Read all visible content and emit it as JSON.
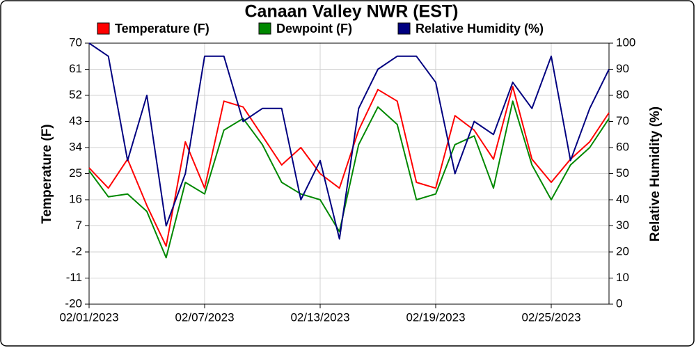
{
  "chart_data": {
    "type": "line",
    "title": "Canaan Valley NWR (EST)",
    "y_label": "Temperature (F)",
    "y2_label": "Relative Humidity (%)",
    "x": [
      "02/01/2023",
      "02/02/2023",
      "02/03/2023",
      "02/04/2023",
      "02/05/2023",
      "02/06/2023",
      "02/07/2023",
      "02/08/2023",
      "02/09/2023",
      "02/10/2023",
      "02/11/2023",
      "02/12/2023",
      "02/13/2023",
      "02/14/2023",
      "02/15/2023",
      "02/16/2023",
      "02/17/2023",
      "02/18/2023",
      "02/19/2023",
      "02/20/2023",
      "02/21/2023",
      "02/22/2023",
      "02/23/2023",
      "02/24/2023",
      "02/25/2023",
      "02/26/2023",
      "02/27/2023",
      "02/28/2023"
    ],
    "xlim": [
      "02/01/2023",
      "02/28/2023"
    ],
    "xticks": [
      "02/01/2023",
      "02/07/2023",
      "02/13/2023",
      "02/19/2023",
      "02/25/2023"
    ],
    "ylim": [
      -20,
      70
    ],
    "yticks": [
      -20,
      -11,
      -2,
      7,
      16,
      25,
      34,
      43,
      52,
      61,
      70
    ],
    "y2lim": [
      0,
      100
    ],
    "y2ticks": [
      0,
      10,
      20,
      30,
      40,
      50,
      60,
      70,
      80,
      90,
      100
    ],
    "grid": true,
    "legend": "top",
    "series": [
      {
        "name": "Temperature (F)",
        "color": "#ff0000",
        "values": [
          27,
          20,
          30,
          14,
          0,
          36,
          20,
          50,
          48,
          38,
          28,
          34,
          25,
          20,
          40,
          54,
          50,
          22,
          20,
          45,
          40,
          30,
          55,
          30,
          22,
          30,
          36,
          46
        ]
      },
      {
        "name": "Dewpoint (F)",
        "color": "#008800",
        "values": [
          26,
          17,
          18,
          12,
          -4,
          22,
          18,
          40,
          44,
          35,
          22,
          18,
          16,
          5,
          35,
          48,
          42,
          16,
          18,
          35,
          38,
          20,
          50,
          28,
          16,
          28,
          34,
          44
        ]
      },
      {
        "name": "Relative Humidity (%)",
        "color": "#000080",
        "axis": "y2",
        "values": [
          100,
          95,
          55,
          80,
          30,
          50,
          95,
          95,
          70,
          75,
          75,
          40,
          55,
          25,
          75,
          90,
          95,
          95,
          85,
          50,
          70,
          65,
          85,
          75,
          95,
          55,
          75,
          90
        ]
      }
    ]
  }
}
